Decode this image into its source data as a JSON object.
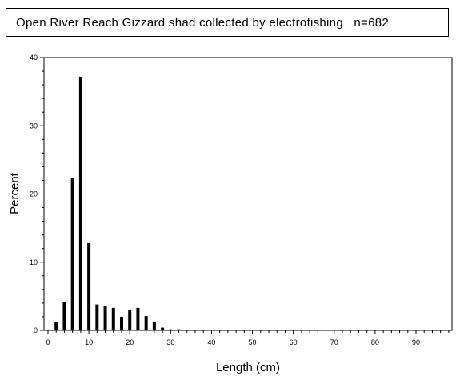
{
  "chart_data": {
    "type": "bar",
    "title": "Open River Reach Gizzard shad collected by electrofishing",
    "title_note": "n=682",
    "xlabel": "Length (cm)",
    "ylabel": "Percent",
    "xlim": [
      0,
      98
    ],
    "ylim": [
      0,
      40
    ],
    "x_ticks": [
      0,
      10,
      20,
      30,
      40,
      50,
      60,
      70,
      80,
      90
    ],
    "y_ticks": [
      0,
      10,
      20,
      30,
      40
    ],
    "grid": false,
    "legend": "none",
    "bar_color": "#000000",
    "x": [
      0,
      2,
      4,
      6,
      8,
      10,
      12,
      14,
      16,
      18,
      20,
      22,
      24,
      26,
      28,
      30,
      32
    ],
    "values": [
      0.1,
      1.2,
      4.1,
      22.3,
      37.2,
      12.8,
      3.8,
      3.6,
      3.3,
      2.0,
      3.0,
      3.3,
      2.1,
      1.3,
      0.4,
      0.15,
      0.15
    ]
  }
}
